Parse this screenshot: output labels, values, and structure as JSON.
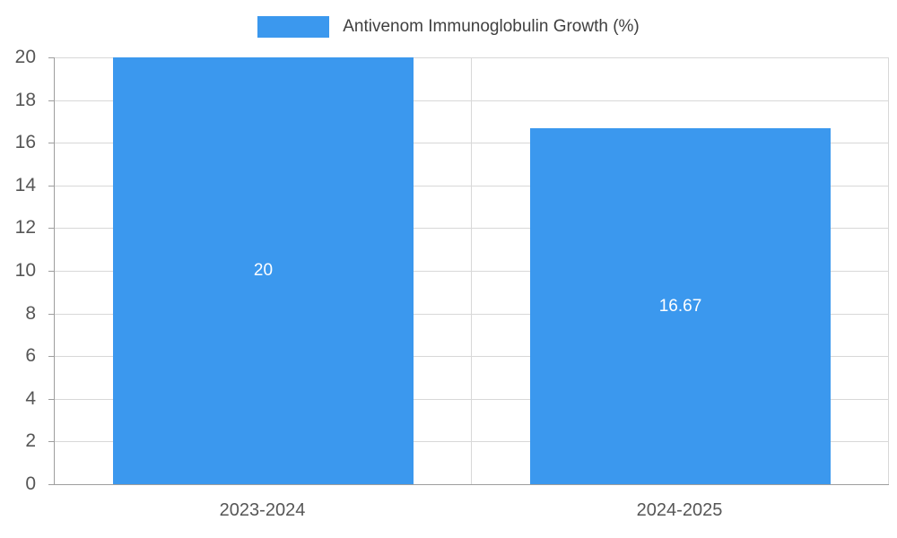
{
  "chart_data": {
    "type": "bar",
    "title": "Antivenom Immunoglobulin Growth (%)",
    "categories": [
      "2023-2024",
      "2024-2025"
    ],
    "values": [
      20,
      16.67
    ],
    "value_labels": [
      "20",
      "16.67"
    ],
    "xlabel": "",
    "ylabel": "",
    "ylim": [
      0,
      20
    ],
    "yticks": [
      0,
      2,
      4,
      6,
      8,
      10,
      12,
      14,
      16,
      18,
      20
    ],
    "grid": true,
    "legend_position": "top",
    "bar_color": "#3b98ee",
    "value_label_color": "#ffffff",
    "axis_color": "#9e9e9e",
    "gridline_color": "#d8d8d8",
    "tick_label_color": "#565656"
  }
}
